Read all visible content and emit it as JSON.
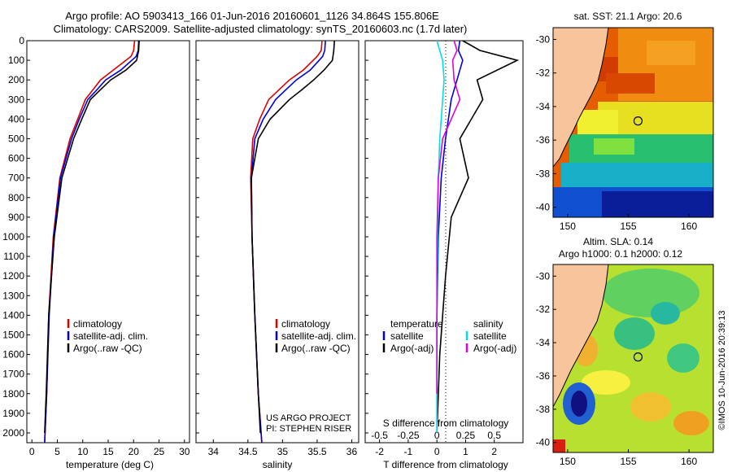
{
  "header": {
    "line1": "Argo profile: AO 5903413_166 01-Jun-2016 20160601_1126 34.864S 155.806E",
    "line2": "Climatology: CARS2009. Satellite-adjusted climatology: synTS_20160603.nc (1.7d later)"
  },
  "credit": {
    "project": "US ARGO PROJECT",
    "pi": "PI: STEPHEN RISER",
    "stamp": "©IMOS 10-Jun-2016 20:39:13"
  },
  "colors": {
    "climatology": "#dd0000",
    "satellite": "#0000dd",
    "argo": "#000000",
    "s_satellite": "#00e0e0",
    "s_argo": "#e000e0",
    "land": "#f8c49c"
  },
  "chart_data": [
    {
      "type": "line",
      "name": "temperature-profile",
      "xlabel": "temperature (deg C)",
      "ylabel": "",
      "xlim": [
        -1,
        31
      ],
      "ylim": [
        2050,
        0
      ],
      "xticks": [
        0,
        5,
        10,
        15,
        20,
        25,
        30
      ],
      "yticks": [
        0,
        100,
        200,
        300,
        400,
        500,
        600,
        700,
        800,
        900,
        1000,
        1100,
        1200,
        1300,
        1400,
        1500,
        1600,
        1700,
        1800,
        1900,
        2000
      ],
      "legend": [
        "climatology",
        "satellite-adj. clim.",
        "Argo(..raw -QC)"
      ],
      "legend_position": "lower-right",
      "series": [
        {
          "color": "#dd0000",
          "x": [
            20.2,
            20.0,
            19.5,
            16.0,
            13.5,
            12.0,
            10.5,
            9.0,
            7.5,
            5.5,
            4.2,
            3.3,
            2.9,
            2.5
          ],
          "y": [
            0,
            50,
            80,
            150,
            200,
            250,
            300,
            400,
            500,
            700,
            1000,
            1400,
            1800,
            2050
          ]
        },
        {
          "color": "#0000dd",
          "x": [
            21.0,
            20.9,
            20.5,
            17.5,
            14.5,
            12.8,
            11.0,
            9.3,
            7.8,
            5.6,
            4.3,
            3.4,
            2.9,
            2.5
          ],
          "y": [
            0,
            50,
            80,
            150,
            200,
            250,
            300,
            400,
            500,
            700,
            1000,
            1400,
            1800,
            2050
          ]
        },
        {
          "color": "#000000",
          "x": [
            21.1,
            21.0,
            20.6,
            18.5,
            15.5,
            13.5,
            11.5,
            9.8,
            8.2,
            5.9,
            4.4,
            3.3,
            2.8,
            2.5
          ],
          "y": [
            0,
            50,
            100,
            150,
            200,
            250,
            300,
            400,
            500,
            700,
            1000,
            1400,
            1800,
            2000
          ]
        }
      ]
    },
    {
      "type": "line",
      "name": "salinity-profile",
      "xlabel": "salinity",
      "ylabel": "",
      "xlim": [
        33.75,
        36.1
      ],
      "ylim": [
        2050,
        0
      ],
      "xticks": [
        34,
        34.5,
        35,
        35.5,
        36
      ],
      "legend": [
        "climatology",
        "satellite-adj. clim.",
        "Argo(..raw -QC)"
      ],
      "legend_position": "lower-right",
      "series": [
        {
          "color": "#dd0000",
          "x": [
            35.57,
            35.56,
            35.5,
            35.3,
            35.1,
            34.95,
            34.8,
            34.67,
            34.57,
            34.54,
            34.56,
            34.6,
            34.65,
            34.7
          ],
          "y": [
            0,
            50,
            80,
            150,
            200,
            250,
            300,
            400,
            500,
            700,
            1000,
            1400,
            1800,
            2050
          ]
        },
        {
          "color": "#0000dd",
          "x": [
            35.62,
            35.61,
            35.58,
            35.4,
            35.2,
            35.05,
            34.9,
            34.72,
            34.6,
            34.55,
            34.56,
            34.6,
            34.65,
            34.7
          ],
          "y": [
            0,
            50,
            80,
            150,
            200,
            250,
            300,
            400,
            500,
            700,
            1000,
            1400,
            1800,
            2050
          ]
        },
        {
          "color": "#000000",
          "x": [
            35.75,
            35.74,
            35.72,
            35.6,
            35.45,
            35.28,
            35.1,
            34.82,
            34.65,
            34.55,
            34.56,
            34.6,
            34.65,
            34.68
          ],
          "y": [
            0,
            50,
            100,
            150,
            200,
            250,
            300,
            400,
            500,
            700,
            1000,
            1400,
            1800,
            2000
          ]
        }
      ]
    },
    {
      "type": "line",
      "name": "difference-profile",
      "xlabel": "T difference from climatology",
      "top_label": "S difference from climatology",
      "xlim": [
        -2.5,
        3.0
      ],
      "ylim": [
        2050,
        0
      ],
      "xticks": [
        -2,
        -1,
        0,
        1,
        2
      ],
      "top_xticks": [
        "-0.5",
        "-0.25",
        "0",
        "0.25",
        "0.5"
      ],
      "legend": [
        "temperature",
        "satellite",
        "Argo(-adj)",
        "salinity",
        "satellite",
        "Argo(-adj)"
      ],
      "legend_position": "lower-center",
      "series": [
        {
          "color": "#0000dd",
          "x": [
            0.8,
            0.75,
            0.9,
            0.7,
            0.5,
            0.4,
            0.3,
            0.15,
            0.05,
            0,
            0,
            0
          ],
          "y": [
            0,
            50,
            100,
            200,
            300,
            400,
            500,
            700,
            1000,
            1400,
            1800,
            2000
          ]
        },
        {
          "color": "#000000",
          "x": [
            0.9,
            1.5,
            2.8,
            1.4,
            1.6,
            1.2,
            0.8,
            1.1,
            0.5,
            0.3,
            0.1,
            0
          ],
          "y": [
            0,
            50,
            100,
            200,
            300,
            400,
            500,
            700,
            900,
            1200,
            1600,
            2000
          ]
        },
        {
          "color": "#00e0e0",
          "x": [
            0.0,
            0.1,
            0.2,
            0.25,
            0.2,
            0.15,
            0.1,
            0.05,
            0.02,
            0,
            0
          ],
          "y": [
            0,
            50,
            100,
            200,
            300,
            400,
            500,
            700,
            1000,
            1400,
            2000
          ]
        },
        {
          "color": "#e000e0",
          "x": [
            0.6,
            0.7,
            0.55,
            0.6,
            0.8,
            0.5,
            0.2,
            0.05,
            0,
            0
          ],
          "y": [
            0,
            50,
            100,
            200,
            300,
            400,
            500,
            700,
            1000,
            1800
          ]
        }
      ]
    },
    {
      "type": "heatmap",
      "name": "sst-map",
      "title": "sat. SST: 21.1 Argo: 20.6",
      "xticks": [
        150,
        155,
        160
      ],
      "yticks": [
        -30,
        -32,
        -34,
        -36,
        -38,
        -40
      ],
      "xlim": [
        148.8,
        162
      ],
      "ylim": [
        -40.6,
        -29.3
      ],
      "float_position": [
        155.8,
        -34.86
      ]
    },
    {
      "type": "heatmap",
      "name": "sla-map",
      "title_line1": "Altim. SLA: 0.14",
      "title_line2": "Argo h1000: 0.1 h2000: 0.12",
      "xticks": [
        150,
        155,
        160
      ],
      "yticks": [
        -30,
        -32,
        -34,
        -36,
        -38,
        -40
      ],
      "xlim": [
        148.8,
        162
      ],
      "ylim": [
        -40.6,
        -29.3
      ],
      "float_position": [
        155.8,
        -34.86
      ]
    }
  ]
}
